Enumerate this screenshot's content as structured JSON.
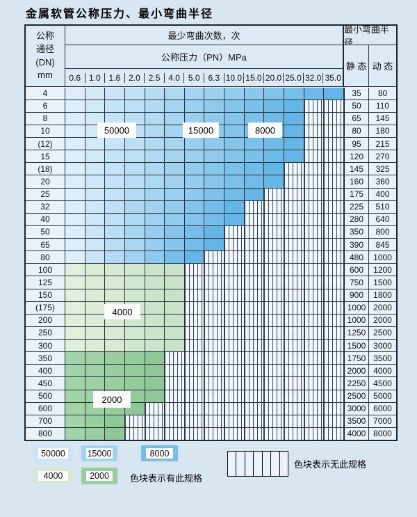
{
  "title": "金属软管公称压力、最小弯曲半径",
  "table": {
    "dn_header_lines": [
      "公称",
      "通径",
      "(DN)",
      "mm"
    ],
    "bend_times_label": "最少弯曲次数，次",
    "pressure_label": "公称压力（PN）MPa",
    "pressure_columns": [
      "0.6",
      "1.0",
      "1.6",
      "2.0",
      "2.5",
      "4.0",
      "5.0",
      "6.3",
      "10.0",
      "15.0",
      "20.0",
      "25.0",
      "32.0",
      "35.0"
    ],
    "radius_label": "最小弯曲半径",
    "static_label": "静 态",
    "dynamic_label": "动 态",
    "cycle_labels": [
      {
        "id": "label-50000",
        "text": "50000"
      },
      {
        "id": "label-15000",
        "text": "15000"
      },
      {
        "id": "label-8000",
        "text": "8000"
      },
      {
        "id": "label-4000",
        "text": "4000"
      },
      {
        "id": "label-2000",
        "text": "2000"
      }
    ],
    "rows": [
      {
        "dn": "4",
        "zone": "blue",
        "last_col": 13,
        "static": "35",
        "dynamic": "80"
      },
      {
        "dn": "6",
        "zone": "blue",
        "last_col": 11,
        "static": "50",
        "dynamic": "110"
      },
      {
        "dn": "8",
        "zone": "blue",
        "last_col": 11,
        "static": "65",
        "dynamic": "145"
      },
      {
        "dn": "10",
        "zone": "blue",
        "last_col": 11,
        "static": "80",
        "dynamic": "180"
      },
      {
        "dn": "(12)",
        "zone": "blue",
        "last_col": 11,
        "static": "95",
        "dynamic": "215"
      },
      {
        "dn": "15",
        "zone": "blue",
        "last_col": 11,
        "static": "120",
        "dynamic": "270"
      },
      {
        "dn": "(18)",
        "zone": "blue",
        "last_col": 10,
        "static": "145",
        "dynamic": "325"
      },
      {
        "dn": "20",
        "zone": "blue",
        "last_col": 10,
        "static": "160",
        "dynamic": "360"
      },
      {
        "dn": "25",
        "zone": "blue",
        "last_col": 9,
        "static": "175",
        "dynamic": "400"
      },
      {
        "dn": "32",
        "zone": "blue",
        "last_col": 8,
        "static": "225",
        "dynamic": "510"
      },
      {
        "dn": "40",
        "zone": "blue",
        "last_col": 8,
        "static": "280",
        "dynamic": "640"
      },
      {
        "dn": "50",
        "zone": "blue",
        "last_col": 7,
        "static": "350",
        "dynamic": "800"
      },
      {
        "dn": "65",
        "zone": "blue",
        "last_col": 7,
        "static": "390",
        "dynamic": "845"
      },
      {
        "dn": "80",
        "zone": "blue",
        "last_col": 6,
        "static": "480",
        "dynamic": "1000"
      },
      {
        "dn": "100",
        "zone": "green_light",
        "last_col": 5,
        "static": "600",
        "dynamic": "1200"
      },
      {
        "dn": "125",
        "zone": "green_light",
        "last_col": 5,
        "static": "750",
        "dynamic": "1500"
      },
      {
        "dn": "150",
        "zone": "green_light",
        "last_col": 5,
        "static": "900",
        "dynamic": "1800"
      },
      {
        "dn": "(175)",
        "zone": "green_light",
        "last_col": 5,
        "static": "1000",
        "dynamic": "2000"
      },
      {
        "dn": "200",
        "zone": "green_light",
        "last_col": 5,
        "static": "1000",
        "dynamic": "2000"
      },
      {
        "dn": "250",
        "zone": "green_light",
        "last_col": 5,
        "static": "1250",
        "dynamic": "2500"
      },
      {
        "dn": "300",
        "zone": "green_light",
        "last_col": 5,
        "static": "1500",
        "dynamic": "3000"
      },
      {
        "dn": "350",
        "zone": "green_dark",
        "last_col": 4,
        "static": "1750",
        "dynamic": "3500"
      },
      {
        "dn": "400",
        "zone": "green_dark",
        "last_col": 4,
        "static": "2000",
        "dynamic": "4000"
      },
      {
        "dn": "450",
        "zone": "green_dark",
        "last_col": 4,
        "static": "2250",
        "dynamic": "4500"
      },
      {
        "dn": "500",
        "zone": "green_dark",
        "last_col": 4,
        "static": "2500",
        "dynamic": "5000"
      },
      {
        "dn": "600",
        "zone": "green_dark",
        "last_col": 3,
        "static": "3000",
        "dynamic": "6000"
      },
      {
        "dn": "700",
        "zone": "green_dark",
        "last_col": 2,
        "static": "3500",
        "dynamic": "7000"
      },
      {
        "dn": "800",
        "zone": "green_dark",
        "last_col": 2,
        "static": "4000",
        "dynamic": "8000"
      }
    ]
  },
  "legend": {
    "chips": [
      {
        "label": "50000",
        "color": "#c9e5f6"
      },
      {
        "label": "15000",
        "color": "#a3d3ef"
      },
      {
        "label": "8000",
        "color": "#74bee7"
      },
      {
        "label": "4000",
        "color": "#d7e9d4"
      },
      {
        "label": "2000",
        "color": "#97cf9d"
      }
    ],
    "has_spec_text": "色块表示有此规格",
    "no_spec_text": "色块表示无此规格"
  },
  "colors": {
    "page_bg": "#d7e6f0",
    "cell_bg": "#e9f1f9",
    "grid_line": "#27313a",
    "blue_start": "#ddeefa",
    "blue_end": "#63b6e6",
    "green_light_start": "#e1efdc",
    "green_light_end": "#c7e3c5",
    "green_dark_start": "#a3d4a8",
    "green_dark_end": "#8ec896",
    "hatch_bg": "#f1f7fc",
    "hatch_line": "#39444e"
  }
}
